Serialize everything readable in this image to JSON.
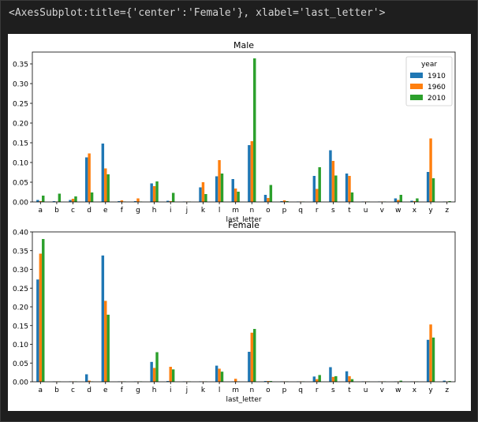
{
  "output_repr": "<AxesSubplot:title={'center':'Female'}, xlabel='last_letter'>",
  "colors": {
    "1910": "#1f77b4",
    "1960": "#ff7f0e",
    "2010": "#2ca02c"
  },
  "chart_data": [
    {
      "type": "bar",
      "title": "Male",
      "xlabel": "last_letter",
      "ylabel": "",
      "ylim": [
        0,
        0.38
      ],
      "yticks": [
        "0.00",
        "0.05",
        "0.10",
        "0.15",
        "0.20",
        "0.25",
        "0.30",
        "0.35"
      ],
      "legend_title": "year",
      "legend_position": "top-right",
      "categories": [
        "a",
        "b",
        "c",
        "d",
        "e",
        "f",
        "g",
        "h",
        "i",
        "j",
        "k",
        "l",
        "m",
        "n",
        "o",
        "p",
        "q",
        "r",
        "s",
        "t",
        "u",
        "v",
        "w",
        "x",
        "y",
        "z"
      ],
      "series": [
        {
          "name": "1910",
          "values": [
            0.005,
            0.002,
            0.005,
            0.113,
            0.148,
            0.002,
            0.002,
            0.047,
            0.003,
            0.001,
            0.037,
            0.065,
            0.058,
            0.144,
            0.018,
            0.002,
            0.001,
            0.066,
            0.131,
            0.072,
            0.001,
            0.001,
            0.009,
            0.003,
            0.076,
            0.001
          ]
        },
        {
          "name": "1960",
          "values": [
            0.002,
            0.001,
            0.008,
            0.123,
            0.085,
            0.004,
            0.009,
            0.04,
            0.002,
            0.001,
            0.05,
            0.106,
            0.034,
            0.154,
            0.01,
            0.004,
            0.001,
            0.033,
            0.104,
            0.066,
            0.001,
            0.001,
            0.005,
            0.002,
            0.161,
            0.001
          ]
        },
        {
          "name": "2010",
          "values": [
            0.016,
            0.021,
            0.014,
            0.024,
            0.07,
            0.001,
            0.001,
            0.052,
            0.023,
            0.001,
            0.02,
            0.072,
            0.026,
            0.364,
            0.043,
            0.002,
            0.001,
            0.088,
            0.067,
            0.024,
            0.001,
            0.001,
            0.018,
            0.009,
            0.06,
            0.002
          ]
        }
      ]
    },
    {
      "type": "bar",
      "title": "Female",
      "xlabel": "last_letter",
      "ylabel": "",
      "ylim": [
        0,
        0.4
      ],
      "yticks": [
        "0.00",
        "0.05",
        "0.10",
        "0.15",
        "0.20",
        "0.25",
        "0.30",
        "0.35",
        "0.40"
      ],
      "categories": [
        "a",
        "b",
        "c",
        "d",
        "e",
        "f",
        "g",
        "h",
        "i",
        "j",
        "k",
        "l",
        "m",
        "n",
        "o",
        "p",
        "q",
        "r",
        "s",
        "t",
        "u",
        "v",
        "w",
        "x",
        "y",
        "z"
      ],
      "series": [
        {
          "name": "1910",
          "values": [
            0.273,
            0.001,
            0.001,
            0.02,
            0.337,
            0.001,
            0.001,
            0.053,
            0.002,
            0.001,
            0.001,
            0.043,
            0.001,
            0.08,
            0.002,
            0.001,
            0.001,
            0.014,
            0.039,
            0.028,
            0.001,
            0.001,
            0.001,
            0.001,
            0.112,
            0.003
          ]
        },
        {
          "name": "1960",
          "values": [
            0.342,
            0.001,
            0.001,
            0.003,
            0.216,
            0.001,
            0.001,
            0.037,
            0.04,
            0.001,
            0.001,
            0.035,
            0.008,
            0.131,
            0.002,
            0.001,
            0.001,
            0.007,
            0.013,
            0.015,
            0.001,
            0.001,
            0.001,
            0.001,
            0.153,
            0.001
          ]
        },
        {
          "name": "2010",
          "values": [
            0.381,
            0.001,
            0.001,
            0.001,
            0.179,
            0.001,
            0.001,
            0.079,
            0.033,
            0.001,
            0.001,
            0.027,
            0.001,
            0.141,
            0.002,
            0.001,
            0.001,
            0.018,
            0.015,
            0.007,
            0.001,
            0.001,
            0.003,
            0.001,
            0.118,
            0.002
          ]
        }
      ]
    }
  ]
}
